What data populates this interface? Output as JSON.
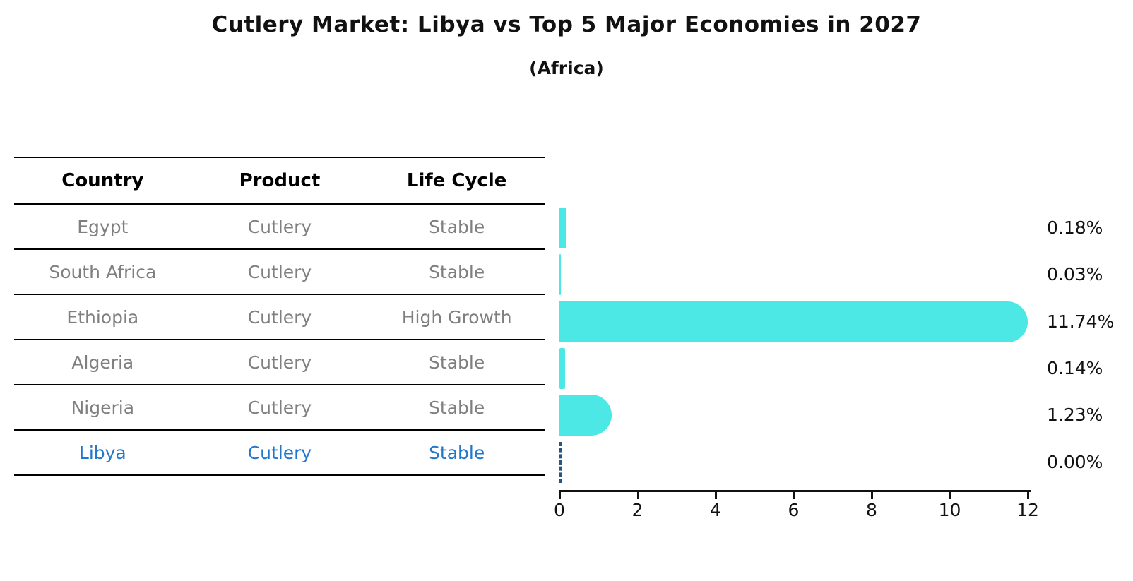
{
  "title": "Cutlery Market: Libya vs Top 5 Major Economies in 2027",
  "subtitle": "(Africa)",
  "table": {
    "headers": [
      "Country",
      "Product",
      "Life Cycle"
    ],
    "rows": [
      {
        "country": "Egypt",
        "product": "Cutlery",
        "life_cycle": "Stable",
        "highlight": false
      },
      {
        "country": "South Africa",
        "product": "Cutlery",
        "life_cycle": "Stable",
        "highlight": false
      },
      {
        "country": "Ethiopia",
        "product": "Cutlery",
        "life_cycle": "High Growth",
        "highlight": false
      },
      {
        "country": "Algeria",
        "product": "Cutlery",
        "life_cycle": "Stable",
        "highlight": false
      },
      {
        "country": "Nigeria",
        "product": "Cutlery",
        "life_cycle": "Stable",
        "highlight": false
      },
      {
        "country": "Libya",
        "product": "Cutlery",
        "life_cycle": "Stable",
        "highlight": true
      }
    ]
  },
  "chart_data": {
    "type": "bar",
    "orientation": "horizontal",
    "categories": [
      "Egypt",
      "South Africa",
      "Ethiopia",
      "Algeria",
      "Nigeria",
      "Libya"
    ],
    "values": [
      0.18,
      0.03,
      11.74,
      0.14,
      1.23,
      0.0
    ],
    "value_labels": [
      "0.18%",
      "0.03%",
      "11.74%",
      "0.14%",
      "1.23%",
      "0.00%"
    ],
    "x_ticks": [
      "0",
      "2",
      "4",
      "6",
      "8",
      "10",
      "12"
    ],
    "xlim": [
      0,
      12
    ],
    "grid": false,
    "legend": false,
    "bar_color": "#4BE8E6",
    "highlight_index": 5,
    "highlight_bar_style": "dashed-outline-zero",
    "highlight_text_color": "#2277cc",
    "dashed_outline_color": "#27557e"
  }
}
